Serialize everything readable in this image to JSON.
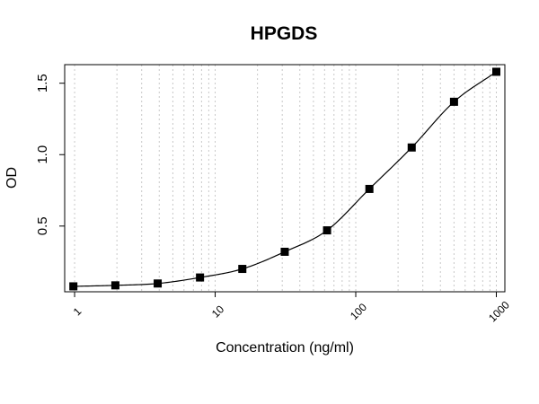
{
  "chart_data": {
    "type": "scatter",
    "title": "HPGDS",
    "xlabel": "Concentration (ng/ml)",
    "ylabel": "OD",
    "x_scale": "log",
    "xlim": [
      0.85,
      1150
    ],
    "ylim": [
      0.04,
      1.63
    ],
    "x_ticks": [
      1,
      10,
      100,
      1000
    ],
    "x_tick_labels": [
      "1",
      "10",
      "100",
      "1000"
    ],
    "y_ticks": [
      0.5,
      1.0,
      1.5
    ],
    "y_tick_labels": [
      "0.5",
      "1.0",
      "1.5"
    ],
    "grid": "vertical-dotted",
    "fit_curve": true,
    "points": [
      {
        "x": 0.98,
        "y": 0.078
      },
      {
        "x": 1.95,
        "y": 0.085
      },
      {
        "x": 3.9,
        "y": 0.098
      },
      {
        "x": 7.8,
        "y": 0.14
      },
      {
        "x": 15.6,
        "y": 0.2
      },
      {
        "x": 31.25,
        "y": 0.32
      },
      {
        "x": 62.5,
        "y": 0.47
      },
      {
        "x": 125,
        "y": 0.76
      },
      {
        "x": 250,
        "y": 1.05
      },
      {
        "x": 500,
        "y": 1.37
      },
      {
        "x": 1000,
        "y": 1.58
      }
    ],
    "colors": {
      "points": "#000000",
      "line": "#000000",
      "grid": "#c8c8c8"
    }
  }
}
